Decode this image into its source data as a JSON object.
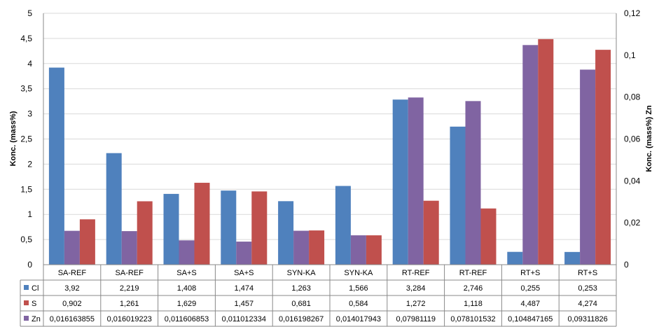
{
  "chart_data": {
    "type": "bar",
    "title": "",
    "xlabel": "",
    "ylabel": "Konc. (mass%)",
    "ylabel_right": "Konc. (mass%) Zn",
    "ylim": [
      0,
      5
    ],
    "ylim_right": [
      0,
      0.12
    ],
    "yticks": [
      "0",
      "0,5",
      "1",
      "1,5",
      "2",
      "2,5",
      "3",
      "3,5",
      "4",
      "4,5",
      "5"
    ],
    "yticks_right": [
      "0",
      "0,02",
      "0,04",
      "0,06",
      "0,08",
      "0,1",
      "0,12"
    ],
    "grid": true,
    "legend": "data-table",
    "categories": [
      "SA-REF",
      "SA-REF",
      "SA+S",
      "SA+S",
      "SYN-KA",
      "SYN-KA",
      "RT-REF",
      "RT-REF",
      "RT+S",
      "RT+S"
    ],
    "series": [
      {
        "name": "Cl",
        "axis": "left",
        "color": "#4f81bd",
        "values": [
          3.92,
          2.219,
          1.408,
          1.474,
          1.263,
          1.566,
          3.284,
          2.746,
          0.255,
          0.253
        ],
        "labels": [
          "3,92",
          "2,219",
          "1,408",
          "1,474",
          "1,263",
          "1,566",
          "3,284",
          "2,746",
          "0,255",
          "0,253"
        ]
      },
      {
        "name": "Zn",
        "axis": "right",
        "color": "#8064a2",
        "values": [
          0.016163855,
          0.016019223,
          0.011606853,
          0.011012334,
          0.016198267,
          0.014017943,
          0.07981119,
          0.078101532,
          0.104847165,
          0.09311826
        ],
        "labels": [
          "0,016163855",
          "0,016019223",
          "0,011606853",
          "0,011012334",
          "0,016198267",
          "0,014017943",
          "0,07981119",
          "0,078101532",
          "0,104847165",
          "0,09311826"
        ]
      },
      {
        "name": "S",
        "axis": "left",
        "color": "#c0504d",
        "values": [
          0.902,
          1.261,
          1.629,
          1.457,
          0.681,
          0.584,
          1.272,
          1.118,
          4.487,
          4.274
        ],
        "labels": [
          "0,902",
          "1,261",
          "1,629",
          "1,457",
          "0,681",
          "0,584",
          "1,272",
          "1,118",
          "4,487",
          "4,274"
        ]
      }
    ],
    "table_order": [
      "Cl",
      "S",
      "Zn"
    ]
  }
}
